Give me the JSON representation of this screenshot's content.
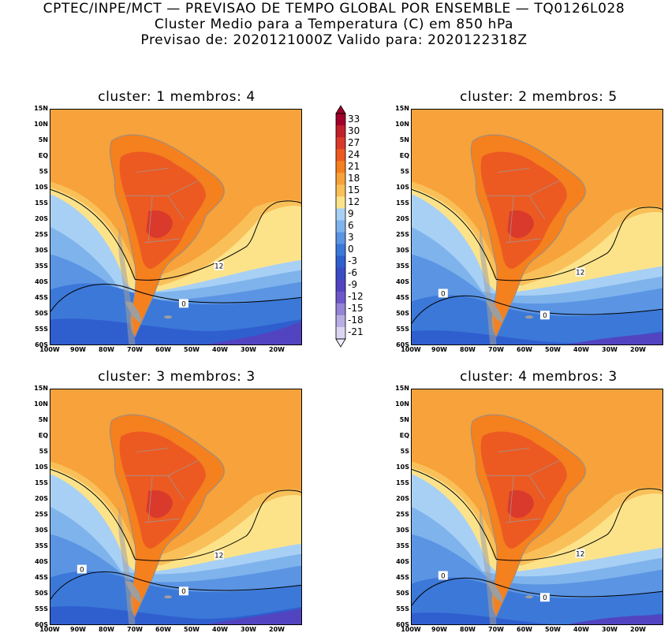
{
  "header": {
    "line1": "CPTEC/INPE/MCT — PREVISAO DE TEMPO GLOBAL POR ENSEMBLE — TQ0126L028",
    "line2": "Cluster Medio para a Temperatura (C) em 850 hPa",
    "line3": "Previsao de: 2020121000Z   Valido para: 2020122318Z"
  },
  "axes": {
    "lat_labels": [
      "15N",
      "10N",
      "5N",
      "EQ",
      "5S",
      "10S",
      "15S",
      "20S",
      "25S",
      "30S",
      "35S",
      "40S",
      "45S",
      "50S",
      "55S",
      "60S"
    ],
    "lon_labels": [
      "100W",
      "90W",
      "80W",
      "70W",
      "60W",
      "50W",
      "40W",
      "30W",
      "20W"
    ]
  },
  "colorbar": {
    "labels": [
      "33",
      "30",
      "27",
      "24",
      "21",
      "18",
      "15",
      "12",
      "9",
      "6",
      "3",
      "0",
      "-3",
      "-6",
      "-9",
      "-12",
      "-15",
      "-18",
      "-21"
    ],
    "colors": [
      "#a0002a",
      "#c0202a",
      "#d93a2b",
      "#ec5a22",
      "#f5801e",
      "#f7a23a",
      "#f9c05a",
      "#fce38a",
      "#a8d0f5",
      "#7fb3ec",
      "#5a94e3",
      "#3c78d8",
      "#2f5fcf",
      "#3a4cc4",
      "#5244c0",
      "#6e58c9",
      "#9484d6",
      "#b8aee3",
      "#dcd6f2"
    ]
  },
  "panels": [
    {
      "title": "cluster: 1   membros: 4",
      "labels": [
        "12",
        "0"
      ]
    },
    {
      "title": "cluster: 2   membros: 5",
      "labels": [
        "12",
        "0",
        "0"
      ]
    },
    {
      "title": "cluster: 3   membros: 3",
      "labels": [
        "12",
        "0",
        "0"
      ]
    },
    {
      "title": "cluster: 4   membros: 3",
      "labels": [
        "12",
        "0",
        "0"
      ]
    }
  ]
}
